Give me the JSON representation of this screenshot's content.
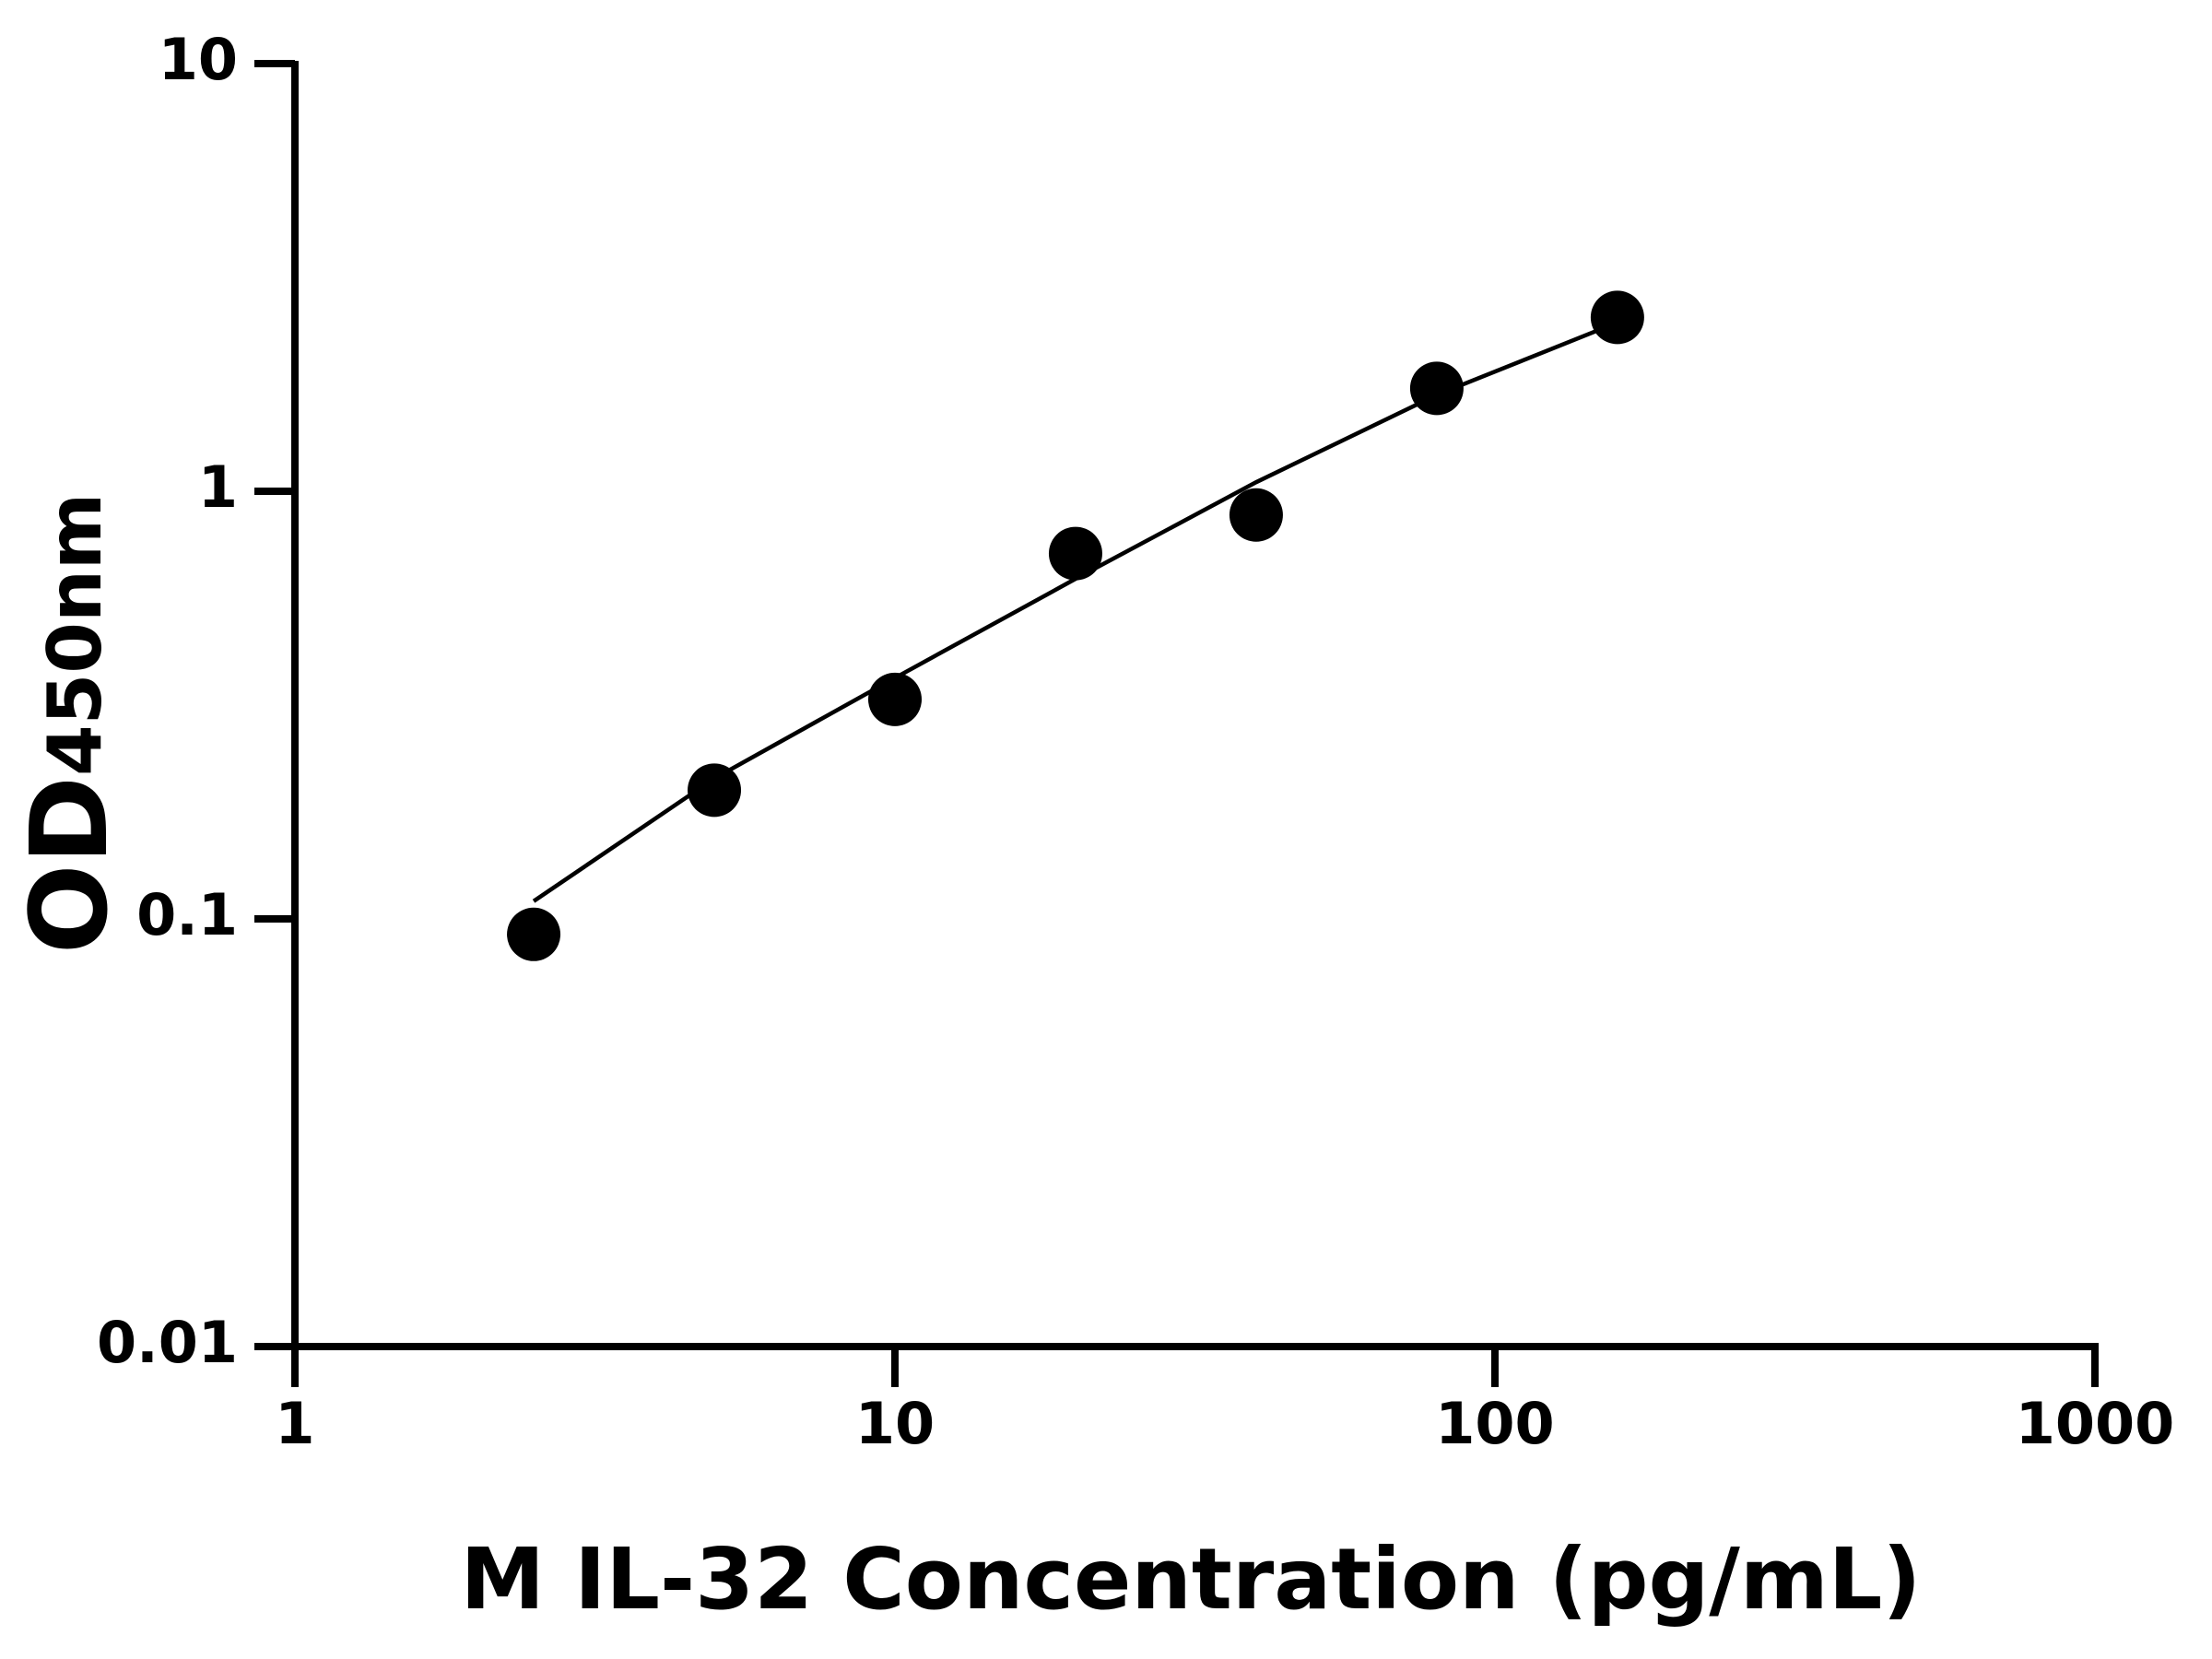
{
  "chart_data": {
    "type": "scatter",
    "x_label": "M IL-32 Concentration (pg/mL)",
    "y_label": {
      "main": "OD",
      "sub": "450nm"
    },
    "log_x": true,
    "log_y": true,
    "xlim": [
      1,
      1000
    ],
    "xticks": [
      1,
      10,
      100,
      1000
    ],
    "ylim": [
      0.01,
      10
    ],
    "yticks": [
      0.01,
      0.1,
      1,
      10
    ],
    "points": {
      "color": "#000000",
      "x": [
        2.5,
        5,
        10,
        20,
        40,
        80,
        160
      ],
      "y": [
        0.092,
        0.2,
        0.326,
        0.715,
        0.88,
        1.74,
        2.55
      ]
    },
    "fit_curve": {
      "color": "#000000",
      "x": [
        2.5,
        5,
        10,
        20,
        40,
        80,
        160
      ],
      "y": [
        0.11,
        0.213,
        0.366,
        0.624,
        1.05,
        1.68,
        2.48
      ]
    }
  }
}
